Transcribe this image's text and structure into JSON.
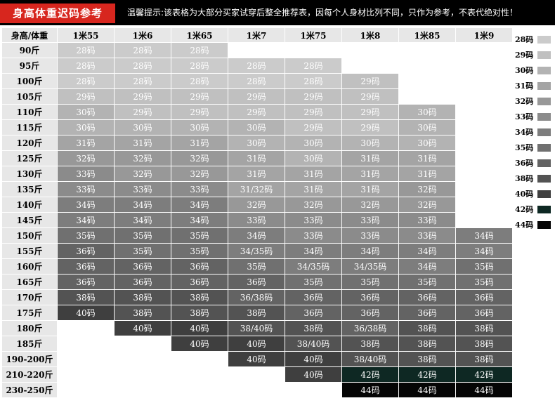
{
  "banner": {
    "title": "身高体重迟码参考",
    "tip": "温馨提示:该表格为大部分买家试穿后整全推荐表，因每个人身材比列不同，只作为参考，不表代绝对性！"
  },
  "table": {
    "corner_label": "身高/体重",
    "columns": [
      "1米55",
      "1米6",
      "1米65",
      "1米7",
      "1米75",
      "1米8",
      "1米85",
      "1米9"
    ],
    "rows": [
      {
        "label": "90斤",
        "cells": [
          "28码",
          "28码",
          "28码",
          "",
          "",
          "",
          "",
          ""
        ]
      },
      {
        "label": "95斤",
        "cells": [
          "28码",
          "28码",
          "28码",
          "28码",
          "28码",
          "",
          "",
          ""
        ]
      },
      {
        "label": "100斤",
        "cells": [
          "28码",
          "28码",
          "28码",
          "28码",
          "28码",
          "29码",
          "",
          ""
        ]
      },
      {
        "label": "105斤",
        "cells": [
          "29码",
          "29码",
          "29码",
          "29码",
          "29码",
          "29码",
          "",
          ""
        ]
      },
      {
        "label": "110斤",
        "cells": [
          "30码",
          "29码",
          "29码",
          "29码",
          "29码",
          "29码",
          "30码",
          ""
        ]
      },
      {
        "label": "115斤",
        "cells": [
          "30码",
          "30码",
          "30码",
          "30码",
          "29码",
          "29码",
          "30码",
          ""
        ]
      },
      {
        "label": "120斤",
        "cells": [
          "31码",
          "31码",
          "31码",
          "30码",
          "30码",
          "30码",
          "30码",
          ""
        ]
      },
      {
        "label": "125斤",
        "cells": [
          "32码",
          "32码",
          "32码",
          "31码",
          "30码",
          "31码",
          "31码",
          ""
        ]
      },
      {
        "label": "130斤",
        "cells": [
          "33码",
          "32码",
          "32码",
          "31码",
          "31码",
          "31码",
          "31码",
          ""
        ]
      },
      {
        "label": "135斤",
        "cells": [
          "33码",
          "33码",
          "33码",
          "31/32码",
          "31码",
          "31码",
          "32码",
          ""
        ]
      },
      {
        "label": "140斤",
        "cells": [
          "34码",
          "34码",
          "34码",
          "32码",
          "32码",
          "32码",
          "32码",
          ""
        ]
      },
      {
        "label": "145斤",
        "cells": [
          "34码",
          "34码",
          "34码",
          "33码",
          "33码",
          "33码",
          "33码",
          ""
        ]
      },
      {
        "label": "150斤",
        "cells": [
          "35码",
          "35码",
          "35码",
          "34码",
          "33码",
          "33码",
          "33码",
          "34码"
        ]
      },
      {
        "label": "155斤",
        "cells": [
          "36码",
          "35码",
          "35码",
          "34/35码",
          "34码",
          "34码",
          "34码",
          "34码"
        ]
      },
      {
        "label": "160斤",
        "cells": [
          "36码",
          "36码",
          "36码",
          "35码",
          "34/35码",
          "34/35码",
          "34码",
          "35码"
        ]
      },
      {
        "label": "165斤",
        "cells": [
          "36码",
          "36码",
          "36码",
          "36码",
          "35码",
          "35码",
          "35码",
          "35码"
        ]
      },
      {
        "label": "170斤",
        "cells": [
          "38码",
          "38码",
          "38码",
          "36/38码",
          "36码",
          "36码",
          "36码",
          "36码"
        ]
      },
      {
        "label": "175斤",
        "cells": [
          "40码",
          "38码",
          "38码",
          "38码",
          "36码",
          "36码",
          "36码",
          "36码"
        ]
      },
      {
        "label": "180斤",
        "cells": [
          "",
          "40码",
          "40码",
          "38/40码",
          "38码",
          "36/38码",
          "38码",
          "38码"
        ]
      },
      {
        "label": "185斤",
        "cells": [
          "",
          "",
          "40码",
          "40码",
          "38/40码",
          "38码",
          "38码",
          "38码"
        ]
      },
      {
        "label": "190-200斤",
        "cells": [
          "",
          "",
          "",
          "40码",
          "40码",
          "38/40码",
          "38码",
          "38码"
        ]
      },
      {
        "label": "210-220斤",
        "cells": [
          "",
          "",
          "",
          "",
          "40码",
          "42码",
          "42码",
          "42码"
        ]
      },
      {
        "label": "230-250斤",
        "cells": [
          "",
          "",
          "",
          "",
          "",
          "44码",
          "44码",
          "44码"
        ]
      }
    ]
  },
  "legend": [
    {
      "label": "28码",
      "color": "#cbcbcb"
    },
    {
      "label": "29码",
      "color": "#c0c0c0"
    },
    {
      "label": "30码",
      "color": "#b3b3b3"
    },
    {
      "label": "31码",
      "color": "#a4a4a4"
    },
    {
      "label": "32码",
      "color": "#989898"
    },
    {
      "label": "33码",
      "color": "#8b8b8b"
    },
    {
      "label": "34码",
      "color": "#7d7d7d"
    },
    {
      "label": "35码",
      "color": "#707070"
    },
    {
      "label": "36码",
      "color": "#636363"
    },
    {
      "label": "38码",
      "color": "#535353"
    },
    {
      "label": "40码",
      "color": "#3f3f3f"
    },
    {
      "label": "42码",
      "color": "#0e2823"
    },
    {
      "label": "44码",
      "color": "#050505"
    }
  ]
}
